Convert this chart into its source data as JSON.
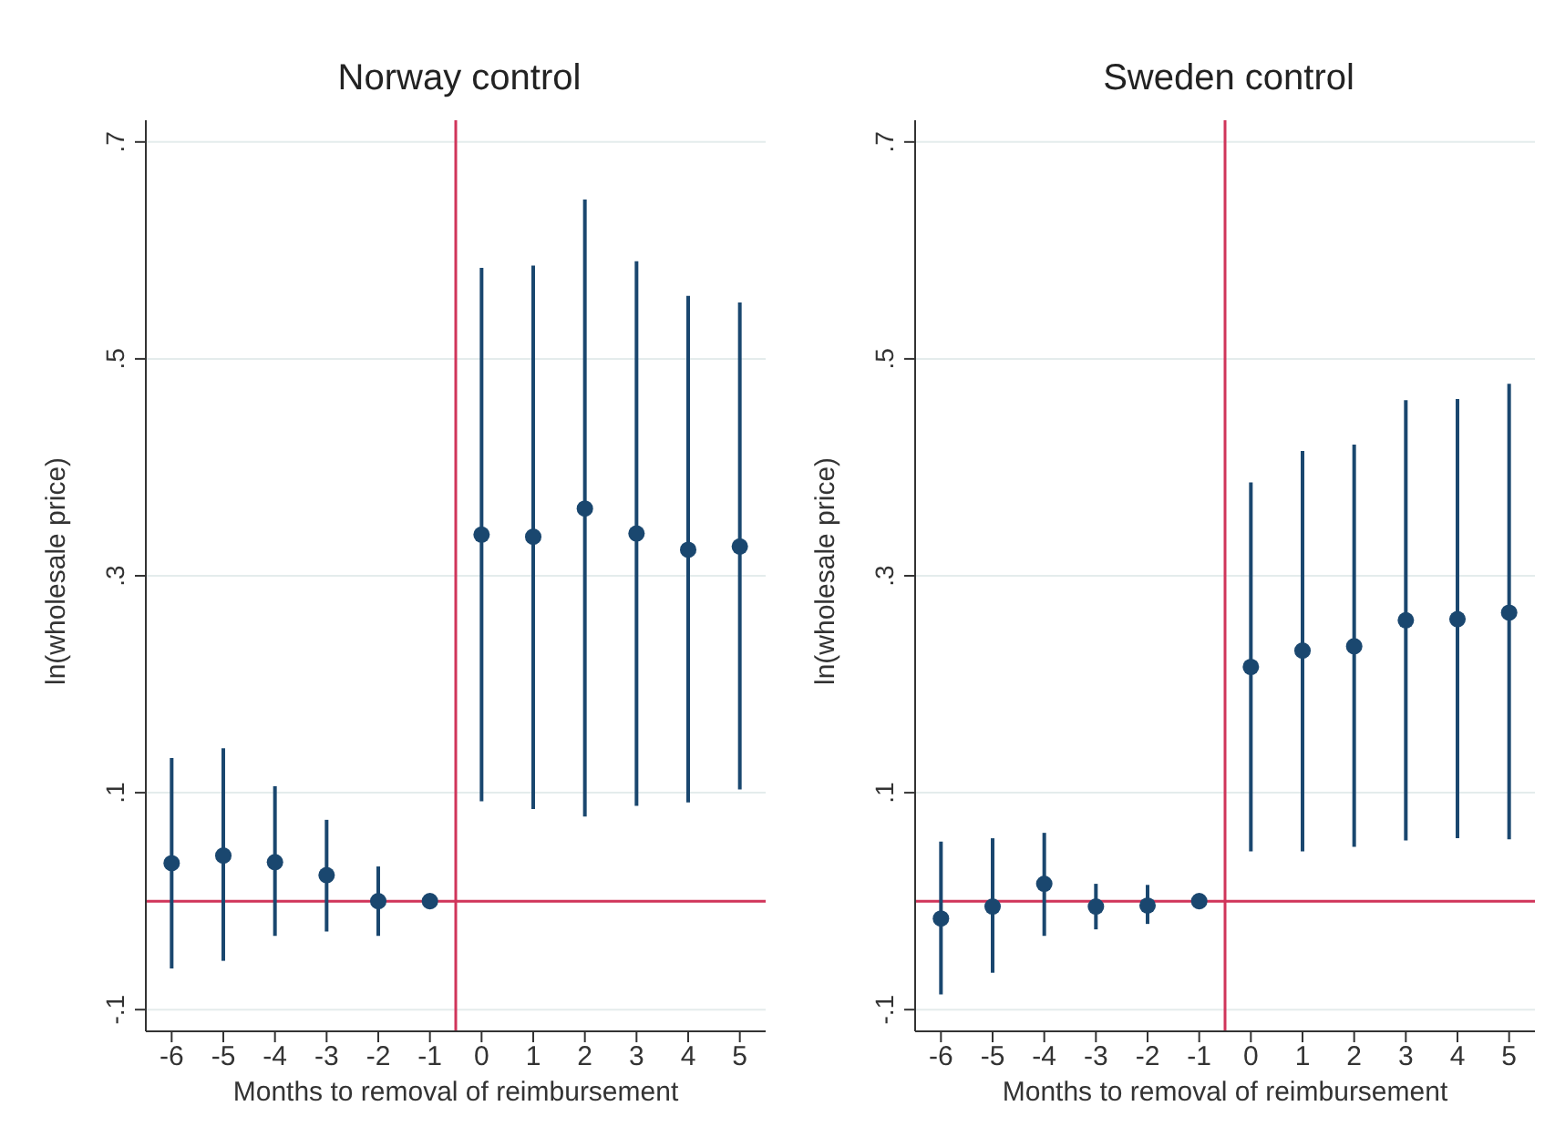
{
  "chart_data": [
    {
      "type": "scatter",
      "title": "Norway control",
      "xlabel": "Months to removal of reimbursement",
      "ylabel": "ln(wholesale price)",
      "x": [
        -6,
        -5,
        -4,
        -3,
        -2,
        -1,
        0,
        1,
        2,
        3,
        4,
        5
      ],
      "series": [
        {
          "color": "#1a476f",
          "values": [
            0.035,
            0.042,
            0.036,
            0.024,
            0,
            0,
            0.338,
            0.336,
            0.362,
            0.339,
            0.324,
            0.327
          ],
          "errors": [
            [
              -0.062,
              0.132
            ],
            [
              -0.055,
              0.141
            ],
            [
              -0.032,
              0.106
            ],
            [
              -0.028,
              0.075
            ],
            [
              -0.032,
              0.032
            ],
            null,
            [
              0.092,
              0.584
            ],
            [
              0.085,
              0.586
            ],
            [
              0.078,
              0.647
            ],
            [
              0.088,
              0.59
            ],
            [
              0.091,
              0.558
            ],
            [
              0.103,
              0.552
            ]
          ]
        }
      ],
      "xlim": [
        -6.5,
        5.5
      ],
      "xticks": [
        -6,
        -5,
        -4,
        -3,
        -2,
        -1,
        0,
        1,
        2,
        3,
        4,
        5
      ],
      "ylim": [
        -0.12,
        0.72
      ],
      "yticks": [
        {
          "value": -0.1,
          "label": "-.1"
        },
        {
          "value": 0.1,
          "label": ".1"
        },
        {
          "value": 0.3,
          "label": ".3"
        },
        {
          "value": 0.5,
          "label": ".5"
        },
        {
          "value": 0.7,
          "label": ".7"
        }
      ],
      "ref_lines": [
        {
          "axis": "x",
          "value": -0.5,
          "color": "#d0355a"
        },
        {
          "axis": "y",
          "value": 0,
          "color": "#d0355a"
        }
      ],
      "grid": "y",
      "marker": "circle"
    },
    {
      "type": "scatter",
      "title": "Sweden control",
      "xlabel": "Months to removal of reimbursement",
      "ylabel": "ln(wholesale price)",
      "x": [
        -6,
        -5,
        -4,
        -3,
        -2,
        -1,
        0,
        1,
        2,
        3,
        4,
        5
      ],
      "series": [
        {
          "color": "#1a476f",
          "values": [
            -0.016,
            -0.005,
            0.016,
            -0.005,
            -0.004,
            0,
            0.216,
            0.231,
            0.235,
            0.259,
            0.26,
            0.266
          ],
          "errors": [
            [
              -0.086,
              0.055
            ],
            [
              -0.066,
              0.058
            ],
            [
              -0.032,
              0.063
            ],
            [
              -0.026,
              0.016
            ],
            [
              -0.021,
              0.015
            ],
            null,
            [
              0.046,
              0.386
            ],
            [
              0.046,
              0.415
            ],
            [
              0.05,
              0.421
            ],
            [
              0.056,
              0.462
            ],
            [
              0.058,
              0.463
            ],
            [
              0.057,
              0.477
            ]
          ]
        }
      ],
      "xlim": [
        -6.5,
        5.5
      ],
      "xticks": [
        -6,
        -5,
        -4,
        -3,
        -2,
        -1,
        0,
        1,
        2,
        3,
        4,
        5
      ],
      "ylim": [
        -0.12,
        0.72
      ],
      "yticks": [
        {
          "value": -0.1,
          "label": "-.1"
        },
        {
          "value": 0.1,
          "label": ".1"
        },
        {
          "value": 0.3,
          "label": ".3"
        },
        {
          "value": 0.5,
          "label": ".5"
        },
        {
          "value": 0.7,
          "label": ".7"
        }
      ],
      "ref_lines": [
        {
          "axis": "x",
          "value": -0.5,
          "color": "#d0355a"
        },
        {
          "axis": "y",
          "value": 0,
          "color": "#d0355a"
        }
      ],
      "grid": "y",
      "marker": "circle"
    }
  ]
}
